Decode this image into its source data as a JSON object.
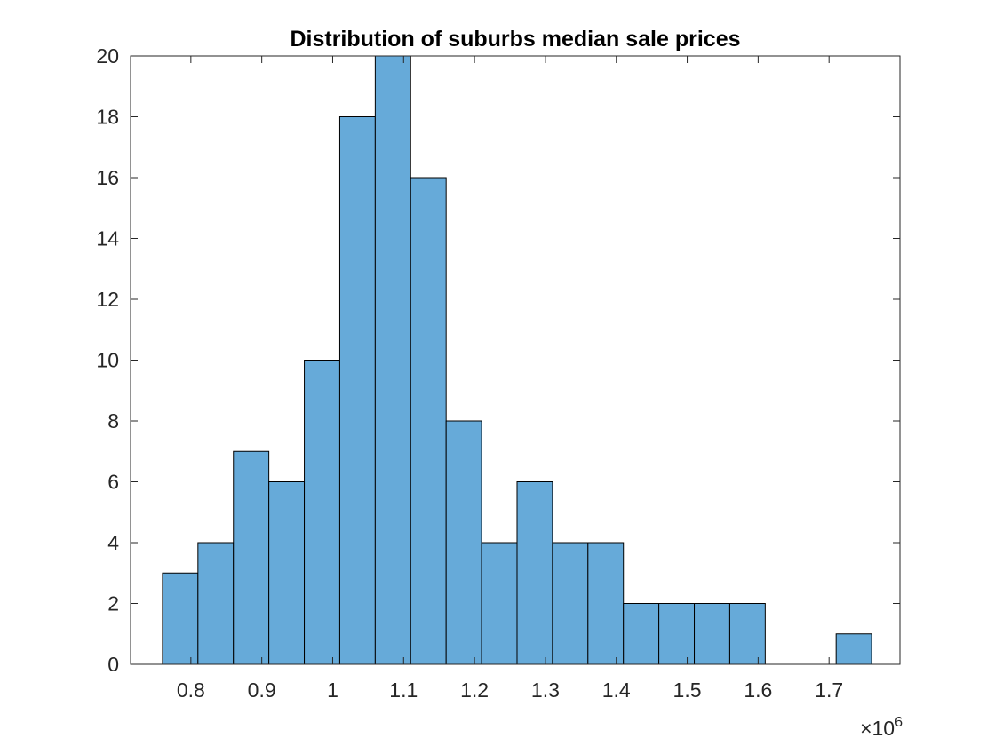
{
  "chart_data": {
    "type": "bar",
    "title": "Distribution of suburbs median sale prices",
    "xlabel": "",
    "ylabel": "",
    "bin_width": 50000,
    "bins": [
      {
        "x0": 760000,
        "x1": 810000,
        "count": 3
      },
      {
        "x0": 810000,
        "x1": 860000,
        "count": 4
      },
      {
        "x0": 860000,
        "x1": 910000,
        "count": 7
      },
      {
        "x0": 910000,
        "x1": 960000,
        "count": 6
      },
      {
        "x0": 960000,
        "x1": 1010000,
        "count": 10
      },
      {
        "x0": 1010000,
        "x1": 1060000,
        "count": 18
      },
      {
        "x0": 1060000,
        "x1": 1110000,
        "count": 20
      },
      {
        "x0": 1110000,
        "x1": 1160000,
        "count": 16
      },
      {
        "x0": 1160000,
        "x1": 1210000,
        "count": 8
      },
      {
        "x0": 1210000,
        "x1": 1260000,
        "count": 4
      },
      {
        "x0": 1260000,
        "x1": 1310000,
        "count": 6
      },
      {
        "x0": 1310000,
        "x1": 1360000,
        "count": 4
      },
      {
        "x0": 1360000,
        "x1": 1410000,
        "count": 4
      },
      {
        "x0": 1410000,
        "x1": 1460000,
        "count": 2
      },
      {
        "x0": 1460000,
        "x1": 1510000,
        "count": 2
      },
      {
        "x0": 1510000,
        "x1": 1560000,
        "count": 2
      },
      {
        "x0": 1560000,
        "x1": 1610000,
        "count": 2
      },
      {
        "x0": 1610000,
        "x1": 1660000,
        "count": 0
      },
      {
        "x0": 1660000,
        "x1": 1710000,
        "count": 0
      },
      {
        "x0": 1710000,
        "x1": 1760000,
        "count": 1
      }
    ],
    "xlim": [
      715000,
      1800000
    ],
    "ylim": [
      0,
      20
    ],
    "xticks": [
      {
        "value": 800000,
        "label": "0.8"
      },
      {
        "value": 900000,
        "label": "0.9"
      },
      {
        "value": 1000000,
        "label": "1"
      },
      {
        "value": 1100000,
        "label": "1.1"
      },
      {
        "value": 1200000,
        "label": "1.2"
      },
      {
        "value": 1300000,
        "label": "1.3"
      },
      {
        "value": 1400000,
        "label": "1.4"
      },
      {
        "value": 1500000,
        "label": "1.5"
      },
      {
        "value": 1600000,
        "label": "1.6"
      },
      {
        "value": 1700000,
        "label": "1.7"
      }
    ],
    "yticks": [
      {
        "value": 0,
        "label": "0"
      },
      {
        "value": 2,
        "label": "2"
      },
      {
        "value": 4,
        "label": "4"
      },
      {
        "value": 6,
        "label": "6"
      },
      {
        "value": 8,
        "label": "8"
      },
      {
        "value": 10,
        "label": "10"
      },
      {
        "value": 12,
        "label": "12"
      },
      {
        "value": 14,
        "label": "14"
      },
      {
        "value": 16,
        "label": "16"
      },
      {
        "value": 18,
        "label": "18"
      },
      {
        "value": 20,
        "label": "20"
      }
    ],
    "x_exponent_prefix": "×10",
    "x_exponent": "6",
    "grid": false,
    "legend": "none",
    "bar_color": "#66aad9",
    "edge_color": "#000000",
    "axis_color": "#262626"
  }
}
